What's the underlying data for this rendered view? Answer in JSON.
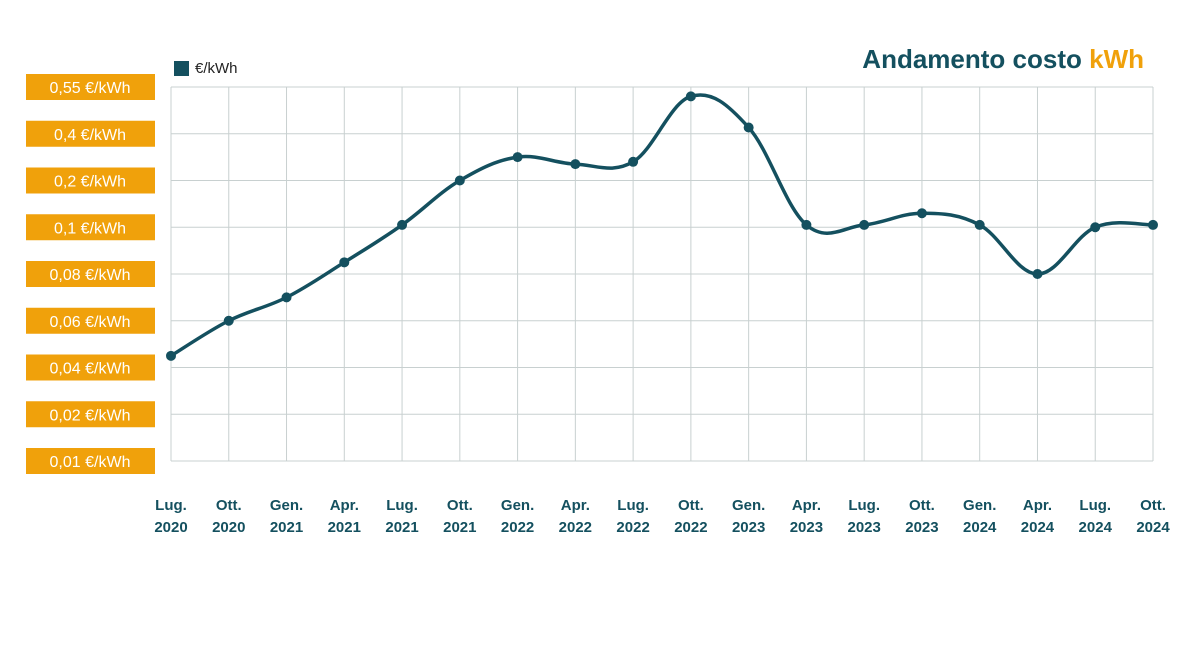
{
  "title": {
    "main": "Andamento costo",
    "accent": "kWh"
  },
  "legend": {
    "label": "€/kWh"
  },
  "colors": {
    "line": "#14505f",
    "accent": "#f0a10b",
    "grid": "#c8d0d0"
  },
  "chart_data": {
    "type": "line",
    "title": "Andamento costo kWh",
    "xlabel": "",
    "ylabel": "€/kWh",
    "y_ticks": [
      "0,55 €/kWh",
      "0,4 €/kWh",
      "0,2 €/kWh",
      "0,1 €/kWh",
      "0,08 €/kWh",
      "0,06 €/kWh",
      "0,04 €/kWh",
      "0,02 €/kWh",
      "0,01 €/kWh"
    ],
    "y_tick_values": [
      0.55,
      0.4,
      0.2,
      0.1,
      0.08,
      0.06,
      0.04,
      0.02,
      0.01
    ],
    "categories": [
      [
        "Lug.",
        "2020"
      ],
      [
        "Ott.",
        "2020"
      ],
      [
        "Gen.",
        "2021"
      ],
      [
        "Apr.",
        "2021"
      ],
      [
        "Lug.",
        "2021"
      ],
      [
        "Ott.",
        "2021"
      ],
      [
        "Gen.",
        "2022"
      ],
      [
        "Apr.",
        "2022"
      ],
      [
        "Lug.",
        "2022"
      ],
      [
        "Ott.",
        "2022"
      ],
      [
        "Gen.",
        "2023"
      ],
      [
        "Apr.",
        "2023"
      ],
      [
        "Lug.",
        "2023"
      ],
      [
        "Ott.",
        "2023"
      ],
      [
        "Gen.",
        "2024"
      ],
      [
        "Apr.",
        "2024"
      ],
      [
        "Lug.",
        "2024"
      ],
      [
        "Ott.",
        "2024"
      ]
    ],
    "series": [
      {
        "name": "€/kWh",
        "values": [
          0.045,
          0.06,
          0.07,
          0.085,
          0.105,
          0.2,
          0.3,
          0.27,
          0.28,
          0.52,
          0.42,
          0.105,
          0.105,
          0.13,
          0.105,
          0.08,
          0.1,
          0.105
        ]
      }
    ],
    "ylim": [
      0.01,
      0.55
    ]
  }
}
